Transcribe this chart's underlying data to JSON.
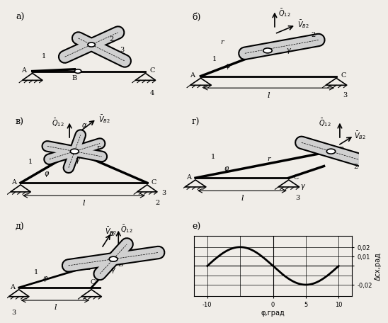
{
  "bg_color": "#f0ede8",
  "panel_labels": [
    "а)",
    "б)",
    "в)",
    "г)",
    "д)",
    "е)"
  ],
  "lc": "black",
  "lw": 1.2,
  "lw_thick": 2.0,
  "graph_xlim": [
    -12,
    12
  ],
  "graph_ylim": [
    -0.032,
    0.032
  ],
  "graph_xticks": [
    -10,
    0,
    5,
    10
  ],
  "graph_yticks": [
    -0.02,
    0,
    0.01,
    0.02
  ],
  "graph_xticklabels": [
    "-10",
    "0",
    "5",
    "10"
  ],
  "graph_yticklabels": [
    "-0,02",
    "",
    "0,01",
    "0,02"
  ],
  "graph_xlabel": "φ,град",
  "graph_ylabel": "Δсх,рад"
}
